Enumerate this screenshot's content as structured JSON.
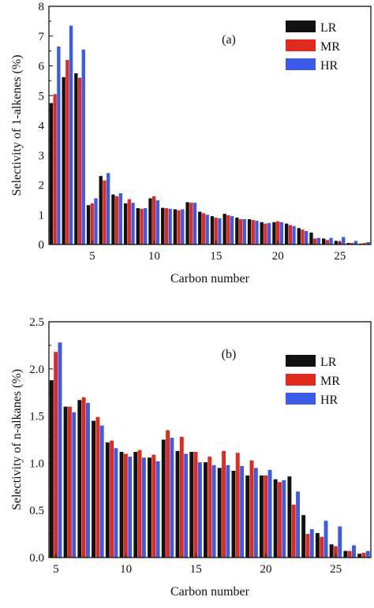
{
  "chart_data": [
    {
      "type": "bar",
      "panel_label": "(a)",
      "xlabel": "Carbon number",
      "ylabel": "Selectivity of 1-alkenes (%)",
      "xlim": [
        1.5,
        27.5
      ],
      "ylim": [
        0,
        8
      ],
      "xticks": [
        5,
        10,
        15,
        20,
        25
      ],
      "yticks": [
        0,
        1,
        2,
        3,
        4,
        5,
        6,
        7,
        8
      ],
      "legend_position": "top-right",
      "x": [
        2,
        3,
        4,
        5,
        6,
        7,
        8,
        9,
        10,
        11,
        12,
        13,
        14,
        15,
        16,
        17,
        18,
        19,
        20,
        21,
        22,
        23,
        24,
        25,
        26,
        27
      ],
      "series": [
        {
          "name": "LR",
          "color": "#111111",
          "values": [
            4.75,
            5.62,
            5.75,
            1.32,
            2.3,
            1.68,
            1.38,
            1.22,
            1.55,
            1.23,
            1.18,
            1.42,
            1.1,
            0.95,
            1.03,
            0.9,
            0.85,
            0.75,
            0.75,
            0.7,
            0.55,
            0.4,
            0.2,
            0.12,
            0.05,
            0.03
          ]
        },
        {
          "name": "MR",
          "color": "#e02a20",
          "values": [
            5.05,
            6.2,
            5.6,
            1.38,
            2.15,
            1.62,
            1.52,
            1.2,
            1.62,
            1.22,
            1.15,
            1.4,
            1.05,
            0.9,
            0.98,
            0.85,
            0.82,
            0.7,
            0.78,
            0.65,
            0.5,
            0.2,
            0.15,
            0.1,
            0.05,
            0.05
          ]
        },
        {
          "name": "HR",
          "color": "#3b5be8",
          "values": [
            6.65,
            7.35,
            6.55,
            1.55,
            2.4,
            1.72,
            1.4,
            1.22,
            1.48,
            1.2,
            1.18,
            1.4,
            1.0,
            0.88,
            0.95,
            0.85,
            0.8,
            0.72,
            0.75,
            0.62,
            0.45,
            0.22,
            0.22,
            0.25,
            0.12,
            0.08
          ]
        }
      ]
    },
    {
      "type": "bar",
      "panel_label": "(b)",
      "xlabel": "Carbon number",
      "ylabel": "Selectivity of n-alkanes (%)",
      "xlim": [
        4.5,
        27.5
      ],
      "ylim": [
        0,
        2.5
      ],
      "xticks": [
        5,
        10,
        15,
        20,
        25
      ],
      "yticks": [
        0.0,
        0.5,
        1.0,
        1.5,
        2.0,
        2.5
      ],
      "ytick_labels": [
        "0.0",
        "0.5",
        "1.0",
        "1.5",
        "2.0",
        "2.5"
      ],
      "legend_position": "top-right",
      "x": [
        5,
        6,
        7,
        8,
        9,
        10,
        11,
        12,
        13,
        14,
        15,
        16,
        17,
        18,
        19,
        20,
        21,
        22,
        23,
        24,
        25,
        26,
        27
      ],
      "series": [
        {
          "name": "LR",
          "color": "#111111",
          "values": [
            1.88,
            1.6,
            1.67,
            1.45,
            1.22,
            1.12,
            1.12,
            1.06,
            1.25,
            1.13,
            1.12,
            1.01,
            0.95,
            0.92,
            0.87,
            0.87,
            0.83,
            0.86,
            0.45,
            0.26,
            0.14,
            0.07,
            0.04
          ]
        },
        {
          "name": "MR",
          "color": "#e02a20",
          "values": [
            2.18,
            1.6,
            1.7,
            1.49,
            1.24,
            1.1,
            1.14,
            1.09,
            1.35,
            1.28,
            1.12,
            1.07,
            1.13,
            1.11,
            1.03,
            0.87,
            0.8,
            0.56,
            0.25,
            0.22,
            0.12,
            0.07,
            0.05
          ]
        },
        {
          "name": "HR",
          "color": "#3b5be8",
          "values": [
            2.28,
            1.54,
            1.64,
            1.4,
            1.16,
            1.07,
            1.06,
            1.02,
            1.27,
            1.1,
            1.01,
            0.98,
            0.98,
            0.97,
            0.95,
            0.93,
            0.82,
            0.7,
            0.3,
            0.39,
            0.33,
            0.13,
            0.07
          ]
        }
      ]
    }
  ]
}
